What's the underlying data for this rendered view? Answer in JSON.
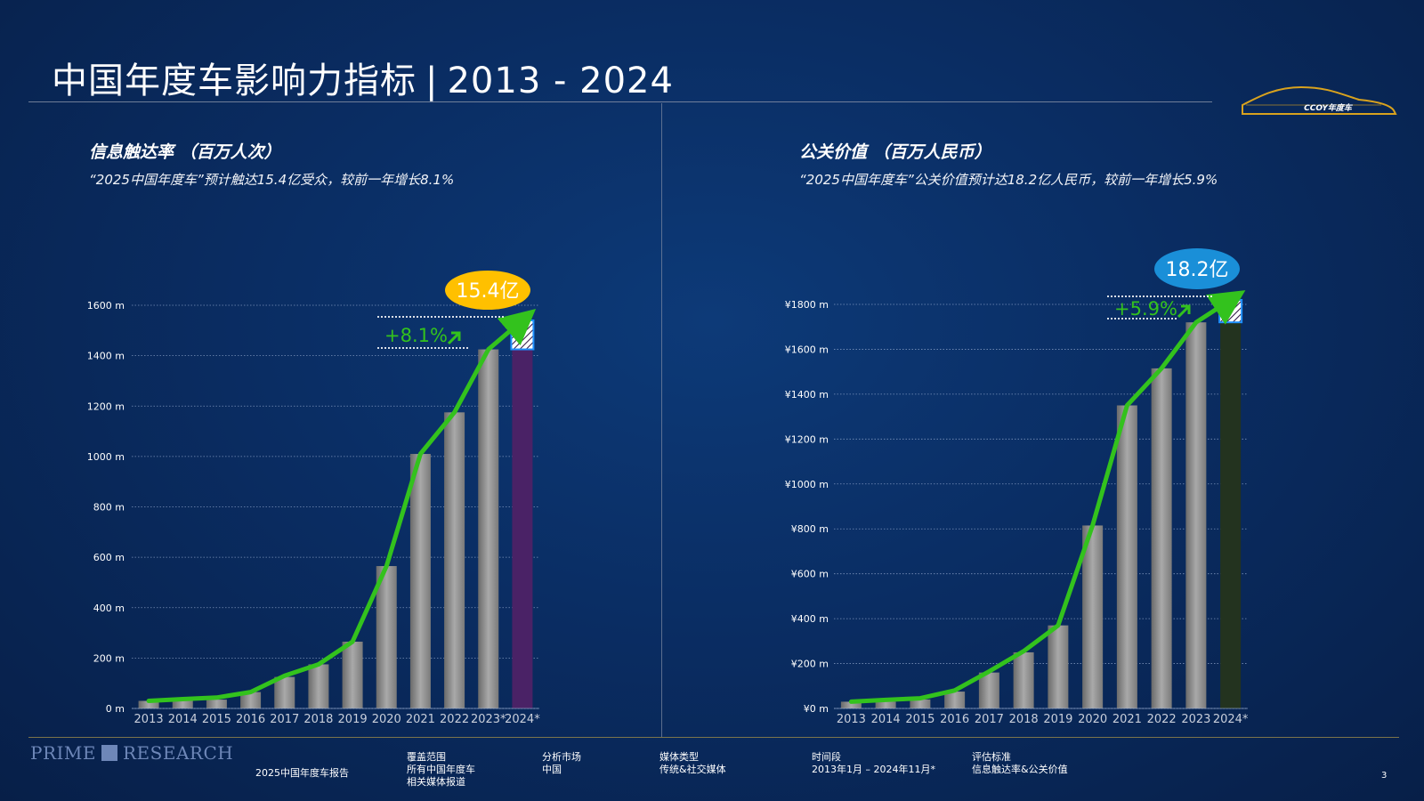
{
  "title": {
    "main": "中国年度车影响力指标",
    "sep": "|",
    "range": "2013 - 2024"
  },
  "logo": {
    "text": "CCOY年度车"
  },
  "left_panel": {
    "title": "信息触达率 （百万人次）",
    "subtitle": "“2025中国年度车”预计触达15.4亿受众，较前一年增长8.1%",
    "bubble": "15.4亿",
    "growth": "+8.1%"
  },
  "right_panel": {
    "title": "公关价值 （百万人民币）",
    "subtitle": "“2025中国年度车”公关价值预计达18.2亿人民币，较前一年增长5.9%",
    "bubble": "18.2亿",
    "growth": "+5.9%"
  },
  "chart_data": [
    {
      "type": "bar",
      "categories": [
        "2013",
        "2014",
        "2015",
        "2016",
        "2017",
        "2018",
        "2019",
        "2020",
        "2021",
        "2022",
        "2023*",
        "2024*"
      ],
      "values": [
        30,
        30,
        35,
        65,
        125,
        175,
        265,
        565,
        1010,
        1175,
        1425,
        1540
      ],
      "line_values": [
        30,
        37,
        43,
        65,
        130,
        175,
        265,
        565,
        1010,
        1175,
        1425,
        1540
      ],
      "ytick_labels": [
        "0 m",
        "200 m",
        "400 m",
        "600 m",
        "800 m",
        "1000 m",
        "1200 m",
        "1400 m",
        "1600 m"
      ],
      "ylim": [
        0,
        1600
      ],
      "grid": true,
      "highlight_last": true,
      "colors": {
        "bar": "#8d8d8d",
        "last_bar": "#4a2266",
        "line": "#33c21d",
        "bubble": "#ffc000"
      }
    },
    {
      "type": "bar",
      "categories": [
        "2013",
        "2014",
        "2015",
        "2016",
        "2017",
        "2018",
        "2019",
        "2020",
        "2021",
        "2022",
        "2023",
        "2024*"
      ],
      "values": [
        30,
        30,
        40,
        75,
        160,
        250,
        370,
        815,
        1350,
        1515,
        1720,
        1820
      ],
      "line_values": [
        30,
        38,
        45,
        80,
        165,
        255,
        370,
        815,
        1350,
        1515,
        1720,
        1820
      ],
      "ytick_labels": [
        "¥0 m",
        "¥200 m",
        "¥400 m",
        "¥600 m",
        "¥800 m",
        "¥1000 m",
        "¥1200 m",
        "¥1400 m",
        "¥1600 m",
        "¥1800 m"
      ],
      "ylim": [
        0,
        1800
      ],
      "grid": true,
      "highlight_last": true,
      "colors": {
        "bar": "#8d8d8d",
        "last_bar": "#23331f",
        "line": "#33c21d",
        "bubble": "#1a8fd8"
      }
    }
  ],
  "footer": {
    "brand_left": "PRIME",
    "brand_right": "RESEARCH",
    "report": "2025中国年度车报告",
    "scope_label": "覆盖范围",
    "scope_lines": [
      "所有中国年度车",
      "相关媒体报道"
    ],
    "market_label": "分析市场",
    "market_value": "中国",
    "media_label": "媒体类型",
    "media_value": "传统&社交媒体",
    "period_label": "时间段",
    "period_value": "2013年1月 – 2024年11月*",
    "criteria_label": "评估标准",
    "criteria_value": "信息触达率&公关价值",
    "page_number": "3"
  }
}
